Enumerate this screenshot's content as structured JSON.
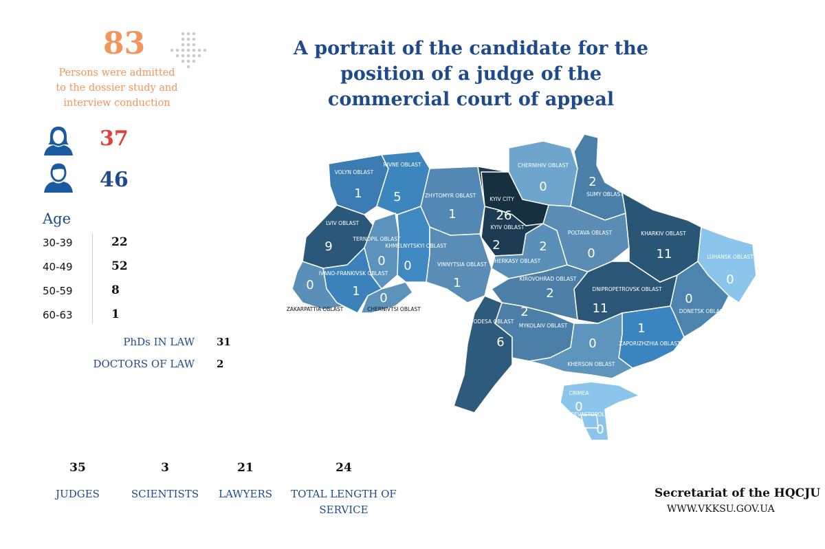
{
  "header": {
    "count": "83",
    "caption": [
      "Persons were admitted",
      "to the dossier study and",
      "interview conduction"
    ],
    "title": [
      "A portrait of the candidate for the",
      "position of a judge of the",
      "commercial court of appeal"
    ]
  },
  "gender": {
    "female": "37",
    "male": "46"
  },
  "age": {
    "title": "Age",
    "rows": [
      [
        "30-39",
        "22"
      ],
      [
        "40-49",
        "52"
      ],
      [
        "50-59",
        "8"
      ],
      [
        "60-63",
        "1"
      ]
    ]
  },
  "degrees": [
    [
      "PhDs IN LAW",
      "31"
    ],
    [
      "DOCTORS OF LAW",
      "2"
    ]
  ],
  "experience": [
    {
      "value": "35",
      "label": "JUDGES"
    },
    {
      "value": "3",
      "label": "SCIENTISTS"
    },
    {
      "value": "21",
      "label": "LAWYERS"
    },
    {
      "value": "24",
      "label": "TOTAL LENGTH OF SERVICE"
    }
  ],
  "footer": {
    "org": "Secretariat of the HQCJU",
    "url": "WWW.VKKSU.GOV.UA"
  },
  "map": {
    "regions": [
      {
        "name": "VOLYN OBLAST",
        "value": 1,
        "color": "#3b7db3"
      },
      {
        "name": "RIVNE OBLAST",
        "value": 5,
        "color": "#3d86bd"
      },
      {
        "name": "ZHYTOMYR OBLAST",
        "value": 1,
        "color": "#5288b3"
      },
      {
        "name": "KYIV OBLAST",
        "value": 2,
        "color": "#1d3b52"
      },
      {
        "name": "CHERNIHIV OBLAST",
        "value": 0,
        "color": "#6da5cc"
      },
      {
        "name": "SUMY OBLAST",
        "value": 2,
        "color": "#4a7fa8"
      },
      {
        "name": "LVIV OBLAST",
        "value": 9,
        "color": "#2b5878"
      },
      {
        "name": "TERNOPIL OBLAST",
        "value": 0,
        "color": "#5b93bd"
      },
      {
        "name": "KHMELNYTSKYI OBLAST",
        "value": 0,
        "color": "#3f88c2"
      },
      {
        "name": "IVANO-FRANKIVSK OBLAST",
        "value": 1,
        "color": "#3b82ba"
      },
      {
        "name": "ZAKARPATTIA OBLAST",
        "value": 0,
        "color": "#5b8fb7"
      },
      {
        "name": "CHERNIVTSI OBLAST",
        "value": 0,
        "color": "#5d93bb"
      },
      {
        "name": "VINNYTSIA OBLAST",
        "value": 1,
        "color": "#5a8db5"
      },
      {
        "name": "CHERKASY OBLAST",
        "value": 2,
        "color": "#5a8fb8"
      },
      {
        "name": "POLTAVA OBLAST",
        "value": 0,
        "color": "#5b8db4"
      },
      {
        "name": "KHARKIV OBLAST",
        "value": 11,
        "color": "#2a5675"
      },
      {
        "name": "LUHANSK OBLAST",
        "value": 0,
        "color": "#8cc5ec"
      },
      {
        "name": "DNIPROPETROVSK OBLAST",
        "value": 11,
        "color": "#2b5675"
      },
      {
        "name": "DONETSK OBLAST",
        "value": 0,
        "color": "#4d84ae"
      },
      {
        "name": "KIROVOHRAD OBLAST",
        "value": 2,
        "color": "#4c7ea6"
      },
      {
        "name": "ODESA OBLAST",
        "value": 6,
        "color": "#2e5b7b"
      },
      {
        "name": "MYKOLAIV OBLAST",
        "value": 2,
        "color": "#4b7fa8"
      },
      {
        "name": "ZAPORIZHZHIA OBLAST",
        "value": 1,
        "color": "#3a85bf"
      },
      {
        "name": "KHERSON OBLAST",
        "value": 0,
        "color": "#5e95bd"
      },
      {
        "name": "KYIV CITY",
        "value": 26,
        "color": "#16303f"
      },
      {
        "name": "CRIMEA",
        "value": 0,
        "color": "#8cc5ec"
      },
      {
        "name": "SEVASTOPOL",
        "value": 0,
        "color": "#8cc5ec"
      }
    ]
  }
}
